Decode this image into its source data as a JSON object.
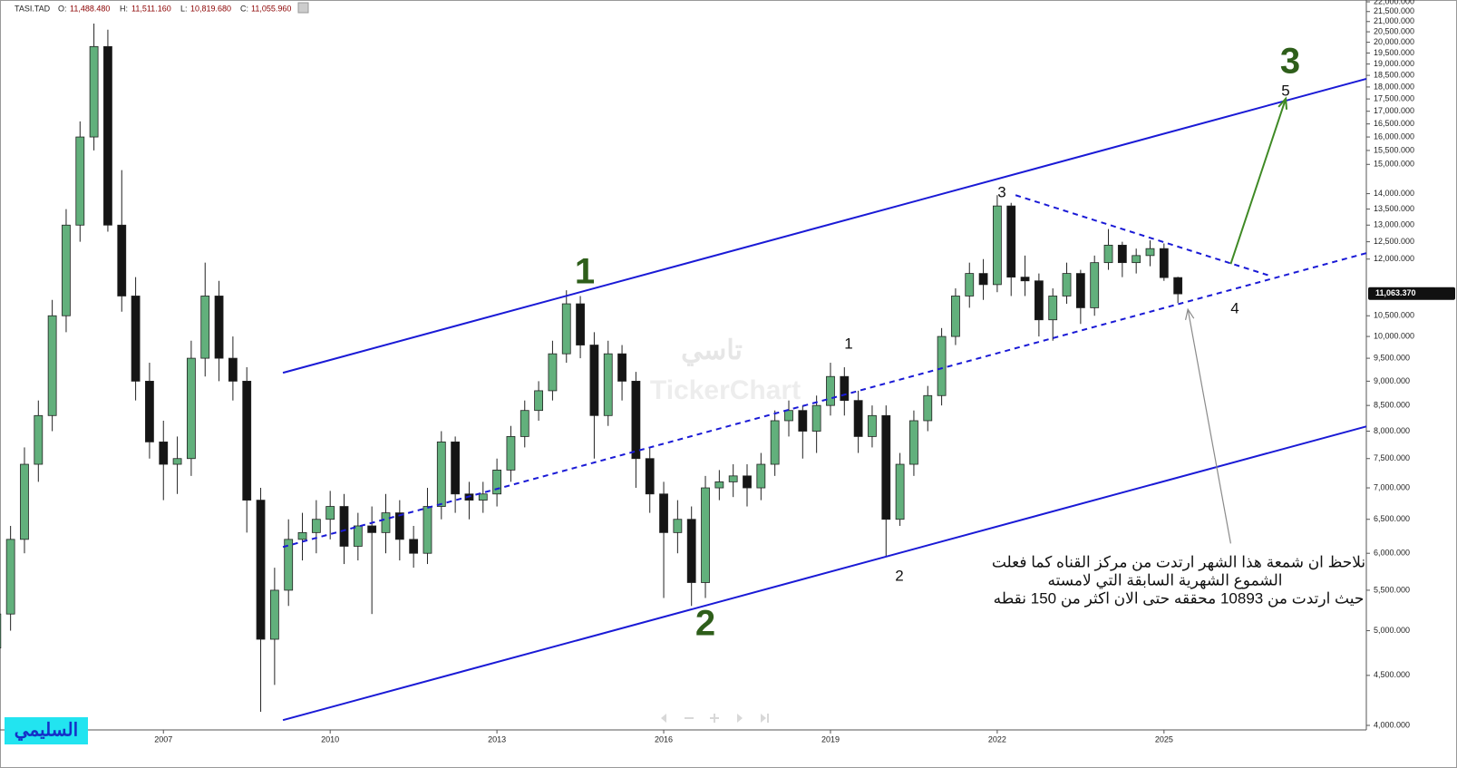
{
  "header": {
    "symbol": "TASI.TAD",
    "open_label": "O:",
    "open": "11,488.480",
    "high_label": "H:",
    "high": "11,511.160",
    "low_label": "L:",
    "low": "10,819.680",
    "close_label": "C:",
    "close": "11,055.960"
  },
  "chart_data": {
    "type": "candlestick",
    "x": [
      2004,
      2004.25,
      2004.5,
      2004.75,
      2005,
      2005.25,
      2005.5,
      2005.75,
      2006,
      2006.25,
      2006.5,
      2006.75,
      2007,
      2007.25,
      2007.5,
      2007.75,
      2008,
      2008.25,
      2008.5,
      2008.75,
      2009,
      2009.25,
      2009.5,
      2009.75,
      2010,
      2010.25,
      2010.5,
      2010.75,
      2011,
      2011.25,
      2011.5,
      2011.75,
      2012,
      2012.25,
      2012.5,
      2012.75,
      2013,
      2013.25,
      2013.5,
      2013.75,
      2014,
      2014.25,
      2014.5,
      2014.75,
      2015,
      2015.25,
      2015.5,
      2015.75,
      2016,
      2016.25,
      2016.5,
      2016.75,
      2017,
      2017.25,
      2017.5,
      2017.75,
      2018,
      2018.25,
      2018.5,
      2018.75,
      2019,
      2019.25,
      2019.5,
      2019.75,
      2020,
      2020.25,
      2020.5,
      2020.75,
      2021,
      2021.25,
      2021.5,
      2021.75,
      2022,
      2022.25,
      2022.5,
      2022.75,
      2023,
      2023.25,
      2023.5,
      2023.75,
      2024,
      2024.25,
      2024.5,
      2024.75,
      2025,
      2025.25
    ],
    "open": [
      4800,
      5200,
      6200,
      7400,
      8300,
      10500,
      13000,
      16000,
      19800,
      13000,
      11000,
      9000,
      7800,
      7400,
      7500,
      9500,
      11000,
      9500,
      9000,
      6800,
      4900,
      5500,
      6200,
      6300,
      6500,
      6700,
      6100,
      6400,
      6300,
      6600,
      6200,
      6000,
      6700,
      7800,
      6900,
      6800,
      6900,
      7300,
      7900,
      8400,
      8800,
      9600,
      10800,
      9800,
      8300,
      9600,
      9000,
      7500,
      6900,
      6300,
      6500,
      5600,
      7000,
      7100,
      7200,
      7000,
      7400,
      8200,
      8400,
      8000,
      8500,
      9100,
      8600,
      7900,
      8300,
      6500,
      7400,
      8200,
      8700,
      10000,
      11000,
      11600,
      11300,
      13600,
      11500,
      11400,
      10400,
      11000,
      11600,
      10700,
      11900,
      12400,
      11900,
      12100,
      12300,
      11488.48
    ],
    "high": [
      5400,
      6400,
      7700,
      8600,
      10900,
      13500,
      16600,
      20900,
      20600,
      14800,
      11500,
      9400,
      8200,
      7900,
      9900,
      11900,
      11400,
      10000,
      9300,
      7000,
      5800,
      6500,
      6600,
      6800,
      6950,
      6900,
      6600,
      6700,
      6900,
      6800,
      6400,
      7000,
      8000,
      7900,
      7100,
      7100,
      7500,
      8100,
      8600,
      9000,
      9900,
      11150,
      11000,
      10100,
      9900,
      9800,
      9200,
      7700,
      7100,
      6800,
      6700,
      7200,
      7300,
      7400,
      7400,
      7600,
      8400,
      8600,
      8500,
      8700,
      9400,
      9300,
      8800,
      8500,
      8500,
      7600,
      8400,
      8900,
      10200,
      11200,
      11900,
      12000,
      13950,
      13700,
      12100,
      11600,
      11200,
      11900,
      11700,
      12100,
      12880,
      12500,
      12300,
      12540,
      12450,
      11511.16
    ],
    "low": [
      4600,
      5000,
      6000,
      7100,
      8000,
      10100,
      12500,
      15500,
      12800,
      10600,
      8600,
      7500,
      6800,
      6900,
      7200,
      9100,
      9000,
      8600,
      6300,
      4130,
      4400,
      5300,
      5900,
      6000,
      6200,
      5850,
      5900,
      5200,
      6000,
      5900,
      5800,
      5850,
      6500,
      6600,
      6500,
      6600,
      6700,
      7100,
      7700,
      8200,
      8600,
      9400,
      9500,
      7500,
      8100,
      8600,
      7000,
      6600,
      5400,
      6000,
      5300,
      5400,
      6800,
      6850,
      6700,
      6800,
      7200,
      7900,
      7500,
      7600,
      8300,
      8300,
      7600,
      7700,
      5960,
      6400,
      7200,
      8000,
      8500,
      9800,
      10700,
      10900,
      11100,
      11000,
      11000,
      10000,
      9900,
      10800,
      10300,
      10500,
      11700,
      11500,
      11600,
      11800,
      11400,
      10819.68
    ],
    "close": [
      5200,
      6200,
      7400,
      8300,
      10500,
      13000,
      16000,
      19800,
      13000,
      11000,
      9000,
      7800,
      7400,
      7500,
      9500,
      11000,
      9500,
      9000,
      6800,
      4900,
      5500,
      6200,
      6300,
      6500,
      6700,
      6100,
      6400,
      6300,
      6600,
      6200,
      6000,
      6700,
      7800,
      6900,
      6800,
      6900,
      7300,
      7900,
      8400,
      8800,
      9600,
      10800,
      9800,
      8300,
      9600,
      9000,
      7500,
      6900,
      6300,
      6500,
      5600,
      7000,
      7100,
      7200,
      7000,
      7400,
      8200,
      8400,
      8000,
      8500,
      9100,
      8600,
      7900,
      8300,
      6500,
      7400,
      8200,
      8700,
      10000,
      11000,
      11600,
      11300,
      13600,
      11500,
      11400,
      10400,
      11000,
      11600,
      10700,
      11900,
      12400,
      11900,
      12100,
      12300,
      11488.48,
      11055.96
    ],
    "up_color": "#62b07c",
    "down_color": "#151515",
    "xlim": [
      2004.06,
      2028.64
    ],
    "ylim": [
      4000,
      22000
    ],
    "log_scale": true,
    "xticks": [
      2007,
      2010,
      2013,
      2016,
      2019,
      2022,
      2025
    ],
    "yticks": [
      {
        "value": 22000,
        "label": "22,000.000"
      },
      {
        "value": 21500,
        "label": "21,500.000"
      },
      {
        "value": 21000,
        "label": "21,000.000"
      },
      {
        "value": 20500,
        "label": "20,500.000"
      },
      {
        "value": 20000,
        "label": "20,000.000"
      },
      {
        "value": 19500,
        "label": "19,500.000"
      },
      {
        "value": 19000,
        "label": "19,000.000"
      },
      {
        "value": 18500,
        "label": "18,500.000"
      },
      {
        "value": 18000,
        "label": "18,000.000"
      },
      {
        "value": 17500,
        "label": "17,500.000"
      },
      {
        "value": 17000,
        "label": "17,000.000"
      },
      {
        "value": 16500,
        "label": "16,500.000"
      },
      {
        "value": 16000,
        "label": "16,000.000"
      },
      {
        "value": 15500,
        "label": "15,500.000"
      },
      {
        "value": 15000,
        "label": "15,000.000"
      },
      {
        "value": 14000,
        "label": "14,000.000"
      },
      {
        "value": 13500,
        "label": "13,500.000"
      },
      {
        "value": 13000,
        "label": "13,000.000"
      },
      {
        "value": 12500,
        "label": "12,500.000"
      },
      {
        "value": 12000,
        "label": "12,000.000"
      },
      {
        "value": 10500,
        "label": "10,500.000"
      },
      {
        "value": 10000,
        "label": "10,000.000"
      },
      {
        "value": 9500,
        "label": "9,500.000"
      },
      {
        "value": 9000,
        "label": "9,000.000"
      },
      {
        "value": 8500,
        "label": "8,500.000"
      },
      {
        "value": 8000,
        "label": "8,000.000"
      },
      {
        "value": 7500,
        "label": "7,500.000"
      },
      {
        "value": 7000,
        "label": "7,000.000"
      },
      {
        "value": 6500,
        "label": "6,500.000"
      },
      {
        "value": 6000,
        "label": "6,000.000"
      },
      {
        "value": 5500,
        "label": "5,500.000"
      },
      {
        "value": 5000,
        "label": "5,000.000"
      },
      {
        "value": 4500,
        "label": "4,500.000"
      },
      {
        "value": 4000,
        "label": "4,000.000"
      }
    ],
    "last_price": {
      "value": 11063.37,
      "label": "11,063.370"
    },
    "trendlines": [
      {
        "style": "solid",
        "color": "#1a1ad6",
        "x": [
          2009.15,
          2028.64
        ],
        "y": [
          9180,
          18350
        ]
      },
      {
        "style": "solid",
        "color": "#1a1ad6",
        "x": [
          2009.15,
          2028.64
        ],
        "y": [
          4050,
          8090
        ]
      },
      {
        "style": "dashed",
        "color": "#1a1ad6",
        "x": [
          2009.15,
          2028.64
        ],
        "y": [
          6090,
          12170
        ]
      },
      {
        "style": "dashed",
        "color": "#1a1ad6",
        "x": [
          2022.33,
          2026.9
        ],
        "y": [
          13950,
          11540
        ]
      }
    ],
    "arrows": [
      {
        "color": "#3f8a25",
        "x": [
          2026.2,
          2027.19
        ],
        "y": [
          11860,
          17510
        ]
      },
      {
        "color": "#8a8a8a",
        "x": [
          2026.2,
          2025.43
        ],
        "y": [
          6140,
          10660
        ]
      }
    ],
    "wave_labels": {
      "major": [
        "1",
        "2",
        "3"
      ],
      "minor": [
        "1",
        "2",
        "3",
        "4",
        "5"
      ]
    },
    "note": [
      "نلاحظ ان شمعة هذا الشهر ارتدت من مركز القناه كما فعلت",
      "الشموع الشهرية السابقة التي لامسته",
      "حيث ارتدت من 10893 محققه حتى الان اكثر من 150 نقطه"
    ],
    "watermark": [
      "تاسي",
      "TickerChart"
    ]
  },
  "badge": "السليمي"
}
